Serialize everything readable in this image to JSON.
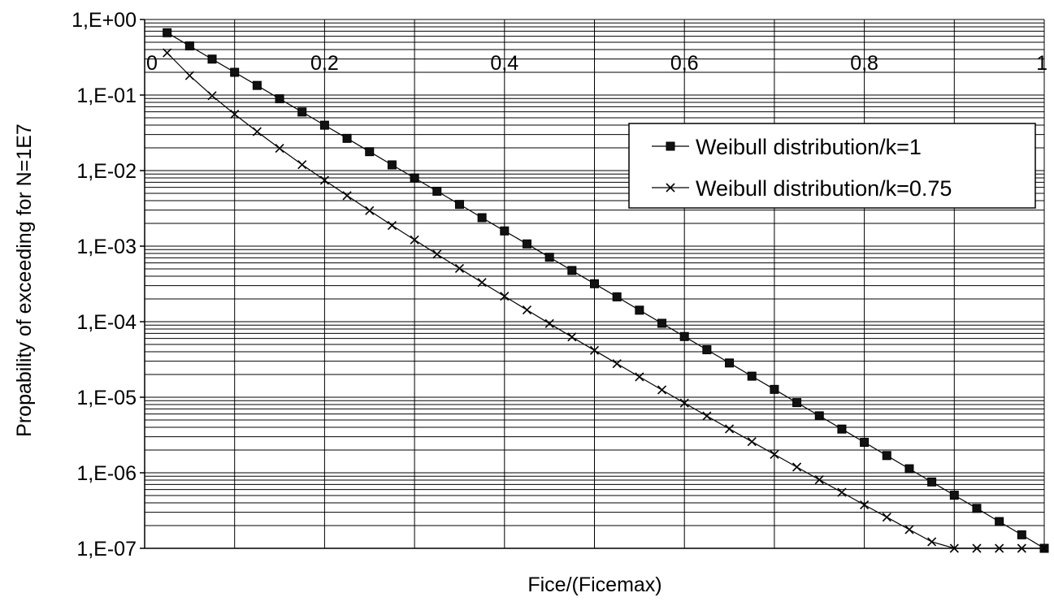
{
  "chart_data": {
    "type": "line",
    "title": "",
    "xlabel": "Fice/(Ficemax)",
    "ylabel": "Propability of exceeding for N=1E7",
    "xlim": [
      0,
      1
    ],
    "ylim": [
      1e-07,
      1
    ],
    "yscale": "log",
    "grid": true,
    "legend_position": "right",
    "x_ticks": [
      "0",
      "0,2",
      "0,4",
      "0,6",
      "0,8",
      "1"
    ],
    "y_ticks": [
      "1,E+00",
      "1,E-01",
      "1,E-02",
      "1,E-03",
      "1,E-04",
      "1,E-05",
      "1,E-06",
      "1,E-07"
    ],
    "series": [
      {
        "name": "Weibull distribution/k=1",
        "marker": "square",
        "x": [
          0.025,
          0.05,
          0.075,
          0.1,
          0.125,
          0.15,
          0.175,
          0.2,
          0.225,
          0.25,
          0.275,
          0.3,
          0.325,
          0.35,
          0.375,
          0.4,
          0.425,
          0.45,
          0.475,
          0.5,
          0.525,
          0.55,
          0.575,
          0.6,
          0.625,
          0.65,
          0.675,
          0.7,
          0.725,
          0.75,
          0.775,
          0.8,
          0.825,
          0.85,
          0.875,
          0.9,
          0.925,
          0.95,
          0.975,
          1.0
        ],
        "y": [
          0.668,
          0.447,
          0.299,
          0.2,
          0.134,
          0.0893,
          0.0597,
          0.0399,
          0.0267,
          0.0178,
          0.0119,
          0.00798,
          0.00533,
          0.00357,
          0.00238,
          0.00159,
          0.00107,
          0.000713,
          0.000476,
          0.000318,
          0.000213,
          0.000142,
          9.52e-05,
          6.36e-05,
          4.25e-05,
          2.84e-05,
          1.9e-05,
          1.27e-05,
          8.49e-06,
          5.67e-06,
          3.79e-06,
          2.53e-06,
          1.69e-06,
          1.13e-06,
          7.56e-07,
          5.05e-07,
          3.38e-07,
          2.26e-07,
          1.51e-07,
          1e-07
        ]
      },
      {
        "name": "Weibull distribution/k=0.75",
        "marker": "x",
        "x": [
          0.025,
          0.05,
          0.075,
          0.1,
          0.125,
          0.15,
          0.175,
          0.2,
          0.225,
          0.25,
          0.275,
          0.3,
          0.325,
          0.35,
          0.375,
          0.4,
          0.425,
          0.45,
          0.475,
          0.5,
          0.525,
          0.55,
          0.575,
          0.6,
          0.625,
          0.65,
          0.675,
          0.7,
          0.725,
          0.75,
          0.775,
          0.8,
          0.825,
          0.85,
          0.875,
          0.9,
          0.925,
          0.95,
          0.975,
          1.0
        ],
        "y": [
          0.362,
          0.181,
          0.0981,
          0.0558,
          0.0328,
          0.0197,
          0.012,
          0.00744,
          0.00466,
          0.00295,
          0.00188,
          0.00121,
          0.000781,
          0.000507,
          0.000331,
          0.000217,
          0.000143,
          9.45e-05,
          6.27e-05,
          4.17e-05,
          2.78e-05,
          1.86e-05,
          1.25e-05,
          8.38e-06,
          5.65e-06,
          3.81e-06,
          2.58e-06,
          1.75e-06,
          1.19e-06,
          8.09e-07,
          5.51e-07,
          3.76e-07,
          2.58e-07,
          1.77e-07,
          1.22e-07,
          1e-07,
          1e-07,
          1e-07,
          1e-07,
          1e-07
        ]
      }
    ]
  }
}
